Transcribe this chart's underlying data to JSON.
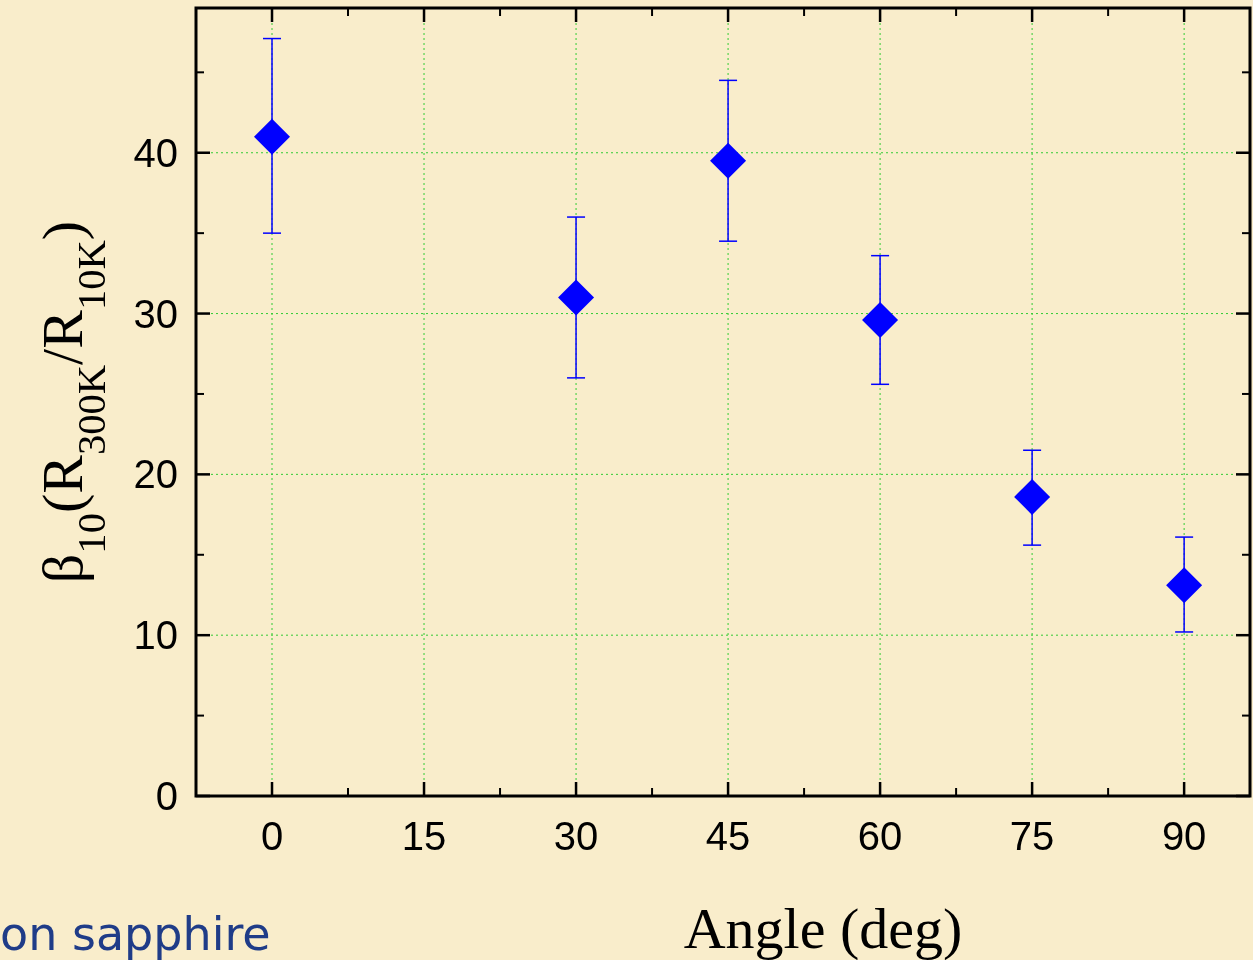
{
  "chart_data": {
    "type": "scatter",
    "xlabel": "Angle (deg)",
    "ylabel": "β$_{10}$(R$_{300K}$/R$_{10K}$)",
    "x": [
      0,
      30,
      45,
      60,
      75,
      90
    ],
    "series": [
      {
        "color": "#0000ff",
        "values": [
          41.0,
          31.0,
          39.5,
          29.6,
          18.6,
          13.1
        ],
        "errors": [
          [
            35.0,
            47.1
          ],
          5,
          5,
          4,
          [
            15.6,
            21.5
          ],
          [
            10.2,
            16.1
          ]
        ]
      }
    ],
    "xlim": [
      -7.5,
      96.5
    ],
    "xticks": [
      0,
      15,
      30,
      45,
      60,
      75,
      90
    ],
    "ylim": [
      0,
      49
    ],
    "yticks": [
      0,
      10,
      20,
      30,
      40
    ],
    "grid": true,
    "marker": "diamond",
    "annotations": [
      "on sapphire"
    ]
  }
}
